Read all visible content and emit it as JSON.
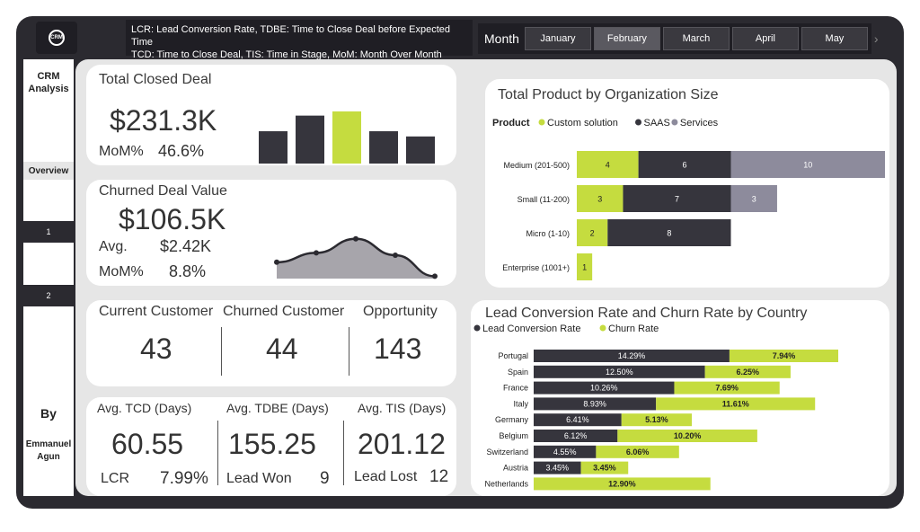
{
  "header": {
    "logo_text": "CRM",
    "legend_line1": "LCR: Lead Conversion Rate, TDBE: Time to Close Deal before Expected Time",
    "legend_line2": "TCD: Time to Close Deal, TIS: Time in Stage, MoM: Month Over Month",
    "month_label": "Month",
    "months": [
      "January",
      "February",
      "March",
      "April",
      "May"
    ],
    "selected_month": "February"
  },
  "sidebar": {
    "title_line1": "CRM",
    "title_line2": "Analysis",
    "overview_label": "Overview",
    "page1_label": "1",
    "page2_label": "2",
    "by_label": "By",
    "author_line1": "Emmanuel",
    "author_line2": "Agun"
  },
  "total_closed": {
    "title": "Total Closed Deal",
    "value": "$231.3K",
    "mom_label": "MoM%",
    "mom_value": "46.6%",
    "sparkbars": [
      0.62,
      0.92,
      1.0,
      0.62,
      0.52
    ],
    "highlight_index": 2
  },
  "churned": {
    "title": "Churned Deal Value",
    "value": "$106.5K",
    "avg_label": "Avg.",
    "avg_value": "$2.42K",
    "mom_label": "MoM%",
    "mom_value": "8.8%",
    "sparkline": [
      0.35,
      0.55,
      0.85,
      0.5,
      0.05
    ]
  },
  "customers": {
    "current_label": "Current Customer",
    "current_value": "43",
    "churned_label": "Churned Customer",
    "churned_value": "44",
    "opportunity_label": "Opportunity",
    "opportunity_value": "143"
  },
  "times": {
    "tcd_label": "Avg. TCD (Days)",
    "tcd_value": "60.55",
    "tdbe_label": "Avg. TDBE (Days)",
    "tdbe_value": "155.25",
    "tis_label": "Avg. TIS (Days)",
    "tis_value": "201.12",
    "lcr_label": "LCR",
    "lcr_value": "7.99%",
    "won_label": "Lead Won",
    "won_value": "9",
    "lost_label": "Lead Lost",
    "lost_value": "12"
  },
  "colors": {
    "green": "#c5dc3f",
    "dark": "#36353d",
    "grey": "#8d8b9c"
  },
  "chart_data": [
    {
      "type": "bar",
      "orientation": "horizontal",
      "stacked": true,
      "title": "Total Product by Organization Size",
      "legend_title": "Product",
      "categories": [
        "Medium (201-500)",
        "Small (11-200)",
        "Micro (1-10)",
        "Enterprise (1001+)"
      ],
      "series": [
        {
          "name": "Custom solution",
          "values": [
            4,
            3,
            2,
            1
          ],
          "color": "#c5dc3f"
        },
        {
          "name": "SAAS",
          "values": [
            6,
            7,
            8,
            0
          ],
          "color": "#36353d"
        },
        {
          "name": "Services",
          "values": [
            10,
            3,
            0,
            0
          ],
          "color": "#8d8b9c"
        }
      ]
    },
    {
      "type": "bar",
      "orientation": "horizontal",
      "stacked": true,
      "title": "Lead Conversion Rate and Churn Rate by Country",
      "categories": [
        "Portugal",
        "Spain",
        "France",
        "Italy",
        "Germany",
        "Belgium",
        "Switzerland",
        "Austria",
        "Netherlands"
      ],
      "series": [
        {
          "name": "Lead Conversion Rate",
          "values": [
            14.29,
            12.5,
            10.26,
            8.93,
            6.41,
            6.12,
            4.55,
            3.45,
            null
          ],
          "labels": [
            "14.29%",
            "12.50%",
            "10.26%",
            "8.93%",
            "6.41%",
            "6.12%",
            "4.55%",
            "3.45%",
            ""
          ],
          "color": "#36353d"
        },
        {
          "name": "Churn Rate",
          "values": [
            7.94,
            6.25,
            7.69,
            11.61,
            5.13,
            10.2,
            6.06,
            3.45,
            12.9
          ],
          "labels": [
            "7.94%",
            "6.25%",
            "7.69%",
            "11.61%",
            "5.13%",
            "10.20%",
            "6.06%",
            "3.45%",
            "12.90%"
          ],
          "color": "#c5dc3f"
        }
      ]
    }
  ]
}
